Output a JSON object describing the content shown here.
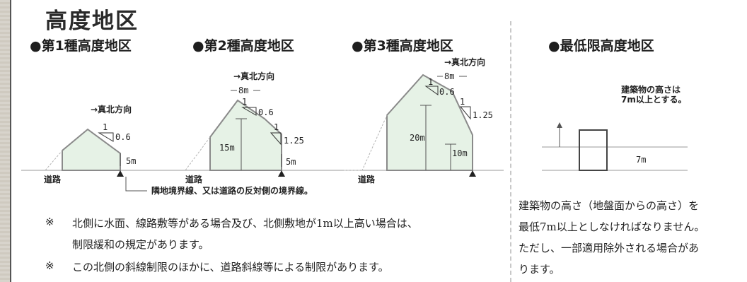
{
  "title": "高度地区",
  "sections": {
    "first": "●第1種高度地区",
    "second": "●第2種高度地区",
    "third": "●第3種高度地区",
    "minimum": "●最低限高度地区"
  },
  "labels": {
    "true_north": "→真北方向",
    "eight_m": "8m",
    "one": "1",
    "ratio_06": "0.6",
    "ratio_125": "1.25",
    "five_m": "5m",
    "fifteen_m": "15m",
    "twenty_m": "20m",
    "ten_m": "10m",
    "road": "道路",
    "boundary": "隣地境界線、又は道路の反対側の境界線。"
  },
  "minimum_diagram": {
    "text_line1": "建築物の高さは",
    "text_line2": "7m以上とする。",
    "seven_m": "7m"
  },
  "notes": {
    "mark": "※",
    "note1_line1": "北側に水面、線路敷等がある場合及び、北側敷地が1m以上高い場合は、",
    "note1_line2": "制限緩和の規定があります。",
    "note2": "この北側の斜線制限のほかに、道路斜線等による制限があります。"
  },
  "minimum_paragraph": {
    "line1": "建築物の高さ（地盤面からの高さ）を",
    "line2": "最低7m以上としなければなりません。",
    "line3": "ただし、一部適用除外される場合があ",
    "line4": "ります。"
  },
  "colors": {
    "fill": "#e6f2e6",
    "outline": "#8a8a8a",
    "dashed": "#b4b4b4"
  }
}
